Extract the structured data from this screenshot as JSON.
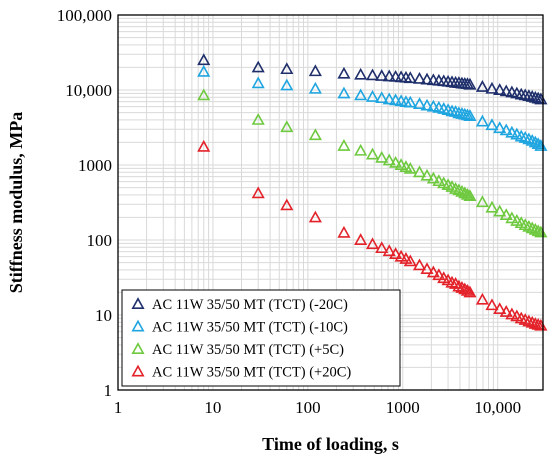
{
  "chart_data": {
    "type": "scatter",
    "title": "",
    "xlabel": "Time of loading, s",
    "ylabel": "Stiffness modulus, MPa",
    "xscale": "log",
    "yscale": "log",
    "xlim": [
      1,
      30000
    ],
    "ylim": [
      1,
      100000
    ],
    "x_ticks": [
      1,
      10,
      100,
      1000,
      10000
    ],
    "x_tick_labels": [
      "1",
      "10",
      "100",
      "1000",
      "10,000"
    ],
    "y_ticks": [
      1,
      10,
      100,
      1000,
      10000,
      100000
    ],
    "y_tick_labels": [
      "1",
      "10",
      "100",
      "1000",
      "10,000",
      "100,000"
    ],
    "grid": true,
    "legend_position": "bottom-left",
    "marker": "open-triangle",
    "series": [
      {
        "name": "AC 11W 35/50 MT (TCT) (-20C)",
        "color": "#1f2f6b",
        "x": [
          8,
          30,
          60,
          120,
          240,
          360,
          480,
          600,
          720,
          840,
          960,
          1080,
          1200,
          1500,
          1800,
          2100,
          2400,
          2700,
          3000,
          3300,
          3600,
          3900,
          4200,
          4500,
          4800,
          5100,
          6900,
          8700,
          10500,
          12300,
          14100,
          15900,
          17700,
          19500,
          21300,
          23100,
          24900,
          26700,
          28500
        ],
        "y": [
          25000,
          20000,
          19000,
          17800,
          16500,
          16000,
          15700,
          15400,
          15200,
          15000,
          14800,
          14600,
          14400,
          14100,
          13800,
          13500,
          13300,
          13100,
          12900,
          12700,
          12500,
          12400,
          12200,
          12100,
          12000,
          11800,
          11000,
          10400,
          10000,
          9600,
          9300,
          9000,
          8700,
          8500,
          8300,
          8100,
          7900,
          7700,
          7500
        ]
      },
      {
        "name": "AC 11W 35/50 MT (TCT) (-10C)",
        "color": "#1fa5e0",
        "x": [
          8,
          30,
          60,
          120,
          240,
          360,
          480,
          600,
          720,
          840,
          960,
          1080,
          1200,
          1500,
          1800,
          2100,
          2400,
          2700,
          3000,
          3300,
          3600,
          3900,
          4200,
          4500,
          4800,
          5100,
          6900,
          8700,
          10500,
          12300,
          14100,
          15900,
          17700,
          19500,
          21300,
          23100,
          24900,
          26700,
          28500
        ],
        "y": [
          17500,
          12300,
          11500,
          10400,
          9000,
          8500,
          8100,
          7800,
          7500,
          7300,
          7100,
          6900,
          6800,
          6500,
          6200,
          6000,
          5800,
          5600,
          5400,
          5200,
          5100,
          4900,
          4800,
          4700,
          4600,
          4500,
          3800,
          3400,
          3100,
          2900,
          2700,
          2550,
          2400,
          2300,
          2200,
          2100,
          2000,
          1900,
          1800
        ]
      },
      {
        "name": "AC 11W 35/50 MT (TCT) (+5C)",
        "color": "#6ec93f",
        "x": [
          8,
          30,
          60,
          120,
          240,
          360,
          480,
          600,
          720,
          840,
          960,
          1080,
          1200,
          1500,
          1800,
          2100,
          2400,
          2700,
          3000,
          3300,
          3600,
          3900,
          4200,
          4500,
          4800,
          5100,
          6900,
          8700,
          10500,
          12300,
          14100,
          15900,
          17700,
          19500,
          21300,
          23100,
          24900,
          26700,
          28500
        ],
        "y": [
          8500,
          4000,
          3200,
          2500,
          1800,
          1550,
          1380,
          1250,
          1150,
          1070,
          1000,
          940,
          890,
          800,
          720,
          660,
          610,
          570,
          540,
          510,
          480,
          460,
          440,
          420,
          400,
          385,
          320,
          270,
          240,
          215,
          195,
          180,
          168,
          158,
          150,
          143,
          137,
          131,
          126
        ]
      },
      {
        "name": "AC 11W 35/50 MT (TCT) (+20C)",
        "color": "#e3222a",
        "x": [
          8,
          30,
          60,
          120,
          240,
          360,
          480,
          600,
          720,
          840,
          960,
          1080,
          1200,
          1500,
          1800,
          2100,
          2400,
          2700,
          3000,
          3300,
          3600,
          3900,
          4200,
          4500,
          4800,
          5100,
          6900,
          8700,
          10500,
          12300,
          14100,
          15900,
          17700,
          19500,
          21300,
          23100,
          24900,
          26700,
          28500
        ],
        "y": [
          1750,
          420,
          290,
          200,
          125,
          100,
          88,
          78,
          71,
          65,
          60,
          56,
          52,
          46,
          41,
          37,
          34,
          31,
          29,
          27,
          26,
          24,
          23,
          22,
          21,
          20,
          16,
          13.5,
          12,
          11,
          10.2,
          9.6,
          9.0,
          8.6,
          8.2,
          7.9,
          7.6,
          7.4,
          7.2
        ]
      }
    ]
  }
}
